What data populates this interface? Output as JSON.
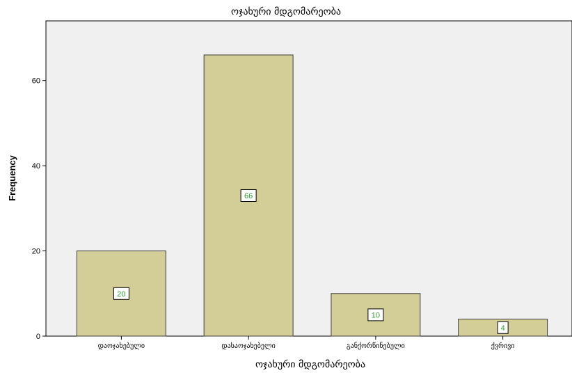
{
  "chart_data": {
    "type": "bar",
    "title": "ოჯახური მდგომარეობა",
    "xlabel": "ოჯახური მდგომარეობა",
    "ylabel": "Frequency",
    "categories": [
      "დაოჯახებული",
      "დასაოჯახებელი",
      "განქორწინებული",
      "ქვრივი"
    ],
    "values": [
      20,
      66,
      10,
      4
    ],
    "ylim": [
      0,
      74
    ],
    "yticks": [
      0,
      20,
      40,
      60
    ],
    "grid": false,
    "data_labels": true,
    "colors": {
      "bar_fill": "#d3cd98",
      "bar_stroke": "#3c3c3c",
      "plot_bg": "#f0f0f0",
      "label_text": "#2e9e2e"
    }
  }
}
